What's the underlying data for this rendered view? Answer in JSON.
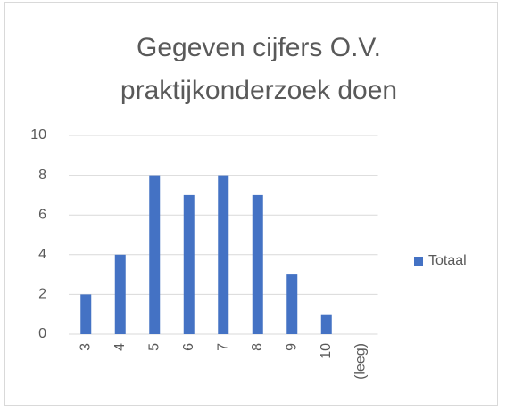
{
  "chart_data": {
    "type": "bar",
    "title": "Gegeven cijfers O.V. praktijkonderzoek doen",
    "categories": [
      "3",
      "4",
      "5",
      "6",
      "7",
      "8",
      "9",
      "10",
      "(leeg)"
    ],
    "series": [
      {
        "name": "Totaal",
        "color": "#4472c4",
        "values": [
          2,
          4,
          8,
          7,
          8,
          7,
          3,
          1,
          null
        ]
      }
    ],
    "ylim": [
      0,
      10
    ],
    "yticks": [
      0,
      2,
      4,
      6,
      8,
      10
    ],
    "grid": true,
    "legend": "right"
  }
}
